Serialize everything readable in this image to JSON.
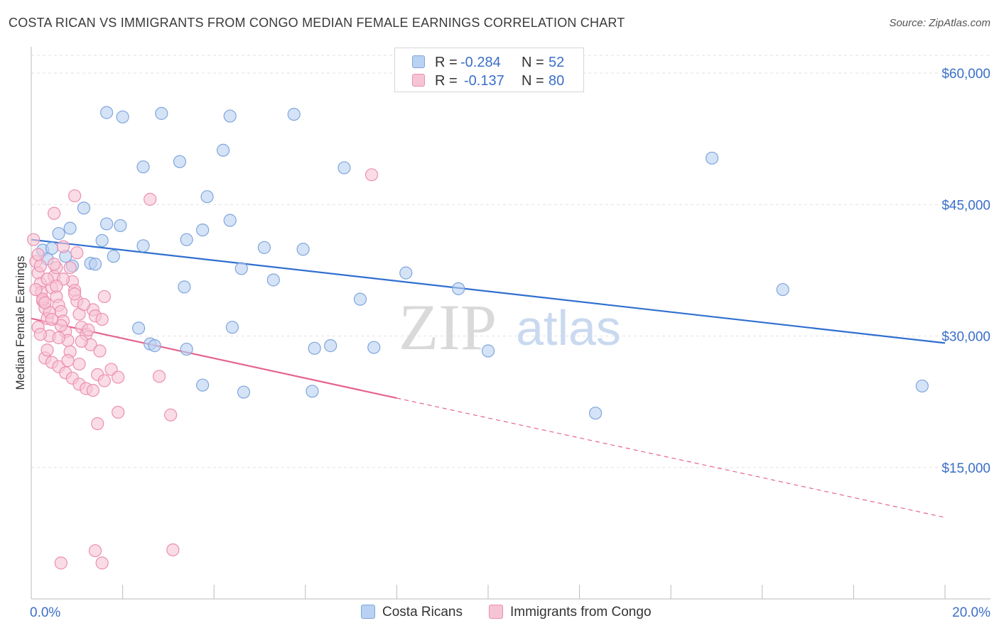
{
  "title": "COSTA RICAN VS IMMIGRANTS FROM CONGO MEDIAN FEMALE EARNINGS CORRELATION CHART",
  "source": "Source: ZipAtlas.com",
  "watermark": {
    "zip": "ZIP",
    "atlas": "atlas"
  },
  "stats": [
    {
      "r_label": "R =",
      "r_value": "-0.284",
      "n_label": "N =",
      "n_value": "52"
    },
    {
      "r_label": "R =",
      "r_value": "-0.137",
      "n_label": "N =",
      "n_value": "80"
    }
  ],
  "colors": {
    "blue_fill": "#b9d1f2",
    "blue_stroke": "#7fa6dc",
    "blue_line": "#2f6fd0",
    "pink_fill": "#f7c4d5",
    "pink_stroke": "#eb8fb0",
    "pink_line": "#e5648f",
    "axis_label": "#3b6fc9",
    "grid": "#e2e2e2"
  },
  "chart_data": {
    "type": "scatter",
    "title": "COSTA RICAN VS IMMIGRANTS FROM CONGO MEDIAN FEMALE EARNINGS CORRELATION CHART",
    "ylabel": "Median Female Earnings",
    "xlim": [
      0,
      20
    ],
    "ylim": [
      0,
      63000
    ],
    "x_tick_labels": {
      "min": "0.0%",
      "max": "20.0%"
    },
    "y_ticks": [
      {
        "value": 15000,
        "label": "$15,000"
      },
      {
        "value": 30000,
        "label": "$30,000"
      },
      {
        "value": 45000,
        "label": "$45,000"
      },
      {
        "value": 60000,
        "label": "$60,000"
      }
    ],
    "series": [
      {
        "name": "Costa Ricans",
        "color": "blue",
        "trend": {
          "x0": 0.0,
          "y0": 41000,
          "x1": 20.0,
          "y1": 29200,
          "solid_until": 20.0
        },
        "points": [
          [
            0.25,
            39800
          ],
          [
            0.6,
            41700
          ],
          [
            0.45,
            40000
          ],
          [
            0.35,
            38800
          ],
          [
            0.75,
            39100
          ],
          [
            0.85,
            42300
          ],
          [
            1.15,
            44600
          ],
          [
            0.9,
            38000
          ],
          [
            1.3,
            38300
          ],
          [
            1.4,
            38200
          ],
          [
            1.8,
            39100
          ],
          [
            1.55,
            40900
          ],
          [
            1.95,
            42600
          ],
          [
            2.45,
            40300
          ],
          [
            1.65,
            42800
          ],
          [
            2.45,
            49300
          ],
          [
            3.25,
            49900
          ],
          [
            3.4,
            41000
          ],
          [
            3.35,
            35600
          ],
          [
            3.75,
            42100
          ],
          [
            3.85,
            45900
          ],
          [
            4.2,
            51200
          ],
          [
            4.35,
            43200
          ],
          [
            4.6,
            37700
          ],
          [
            5.1,
            40100
          ],
          [
            5.95,
            39900
          ],
          [
            5.3,
            36400
          ],
          [
            2.35,
            30900
          ],
          [
            2.6,
            29100
          ],
          [
            2.7,
            28900
          ],
          [
            3.4,
            28500
          ],
          [
            3.75,
            24400
          ],
          [
            4.4,
            31000
          ],
          [
            4.65,
            23600
          ],
          [
            6.15,
            23700
          ],
          [
            6.2,
            28600
          ],
          [
            6.55,
            28900
          ],
          [
            6.85,
            49200
          ],
          [
            7.2,
            34200
          ],
          [
            7.5,
            28700
          ],
          [
            8.2,
            37200
          ],
          [
            9.35,
            35400
          ],
          [
            10.0,
            28300
          ],
          [
            12.35,
            21200
          ],
          [
            14.9,
            50300
          ],
          [
            16.45,
            35300
          ],
          [
            19.5,
            24300
          ],
          [
            2.0,
            55000
          ],
          [
            2.85,
            55400
          ],
          [
            5.75,
            55300
          ],
          [
            4.35,
            55100
          ],
          [
            1.65,
            55500
          ]
        ]
      },
      {
        "name": "Immigrants from Congo",
        "color": "pink",
        "trend": {
          "x0": 0.0,
          "y0": 32000,
          "x1": 20.0,
          "y1": 9300,
          "solid_until": 8.0
        },
        "points": [
          [
            0.05,
            41000
          ],
          [
            0.1,
            38500
          ],
          [
            0.15,
            37200
          ],
          [
            0.2,
            36000
          ],
          [
            0.22,
            35000
          ],
          [
            0.25,
            34000
          ],
          [
            0.3,
            33200
          ],
          [
            0.35,
            32000
          ],
          [
            0.15,
            31000
          ],
          [
            0.4,
            30000
          ],
          [
            0.45,
            35500
          ],
          [
            0.5,
            36800
          ],
          [
            0.55,
            34500
          ],
          [
            0.6,
            33500
          ],
          [
            0.65,
            32800
          ],
          [
            0.7,
            31700
          ],
          [
            0.75,
            30500
          ],
          [
            0.8,
            29500
          ],
          [
            0.85,
            37800
          ],
          [
            0.9,
            36200
          ],
          [
            0.95,
            35200
          ],
          [
            1.0,
            34000
          ],
          [
            1.05,
            32500
          ],
          [
            1.1,
            31000
          ],
          [
            1.2,
            30200
          ],
          [
            1.3,
            29000
          ],
          [
            0.3,
            27500
          ],
          [
            0.45,
            27000
          ],
          [
            0.6,
            26500
          ],
          [
            0.75,
            25800
          ],
          [
            0.9,
            25200
          ],
          [
            1.05,
            24500
          ],
          [
            1.2,
            24000
          ],
          [
            1.35,
            23800
          ],
          [
            1.45,
            25600
          ],
          [
            1.6,
            24900
          ],
          [
            1.75,
            26200
          ],
          [
            1.9,
            25300
          ],
          [
            1.5,
            28300
          ],
          [
            1.35,
            33000
          ],
          [
            1.6,
            34500
          ],
          [
            1.0,
            39500
          ],
          [
            0.7,
            40200
          ],
          [
            0.5,
            44000
          ],
          [
            0.95,
            46000
          ],
          [
            2.6,
            45600
          ],
          [
            7.45,
            48400
          ],
          [
            2.8,
            25400
          ],
          [
            3.05,
            21000
          ],
          [
            1.9,
            21300
          ],
          [
            1.45,
            20000
          ],
          [
            0.2,
            38000
          ],
          [
            0.35,
            36500
          ],
          [
            0.55,
            37800
          ],
          [
            0.1,
            35300
          ],
          [
            0.25,
            34200
          ],
          [
            0.4,
            32700
          ],
          [
            0.65,
            31200
          ],
          [
            0.85,
            28200
          ],
          [
            1.05,
            26800
          ],
          [
            0.15,
            39300
          ],
          [
            0.3,
            33800
          ],
          [
            0.45,
            31900
          ],
          [
            0.6,
            29800
          ],
          [
            0.8,
            27200
          ],
          [
            1.1,
            29400
          ],
          [
            1.25,
            30700
          ],
          [
            1.4,
            32300
          ],
          [
            0.95,
            34800
          ],
          [
            0.7,
            36500
          ],
          [
            0.5,
            38200
          ],
          [
            0.2,
            30200
          ],
          [
            0.35,
            28400
          ],
          [
            1.55,
            31900
          ],
          [
            1.15,
            33600
          ],
          [
            0.65,
            4100
          ],
          [
            1.4,
            5500
          ],
          [
            1.55,
            4100
          ],
          [
            3.1,
            5600
          ],
          [
            0.55,
            35700
          ]
        ]
      }
    ],
    "legend": [
      "Costa Ricans",
      "Immigrants from Congo"
    ]
  }
}
